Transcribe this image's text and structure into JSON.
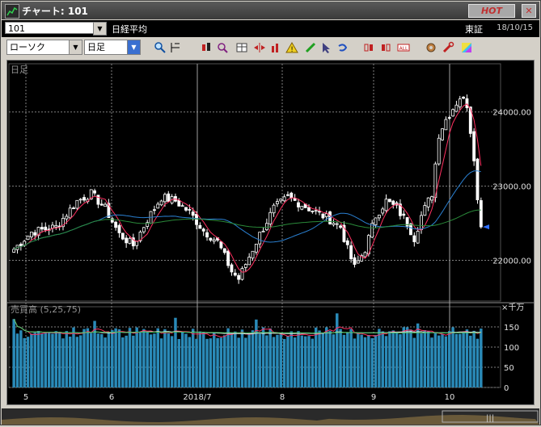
{
  "window": {
    "title": "チャート: 101",
    "hot_label": "HOT",
    "close_label": "✕"
  },
  "info": {
    "code": "101",
    "name": "日経平均",
    "exchange": "東証",
    "date": "18/10/15"
  },
  "toolbar": {
    "chart_type": "ローソク",
    "period": "日足"
  },
  "main_panel": {
    "period_label": "日足",
    "price_ticks": [
      "24000.00",
      "23000.00",
      "22000.00"
    ]
  },
  "volume_panel": {
    "label": "売買高 (5,25,75)",
    "unit": "×千万",
    "ticks": [
      "150",
      "100",
      "50",
      "0"
    ]
  },
  "x_axis": {
    "labels": [
      "5",
      "6",
      "2018/7",
      "8",
      "9",
      "10"
    ]
  },
  "colors": {
    "bg": "#000000",
    "grid": "#808080",
    "ma5": "#ff3060",
    "ma25": "#2a7fd0",
    "ma75": "#2a8a3a",
    "volume_bar": "#2a8ab8",
    "candle": "#ffffff"
  },
  "chart_data": {
    "type": "candlestick",
    "ylim": [
      21450,
      24650
    ],
    "volume_ylim": [
      0,
      200
    ]
  }
}
